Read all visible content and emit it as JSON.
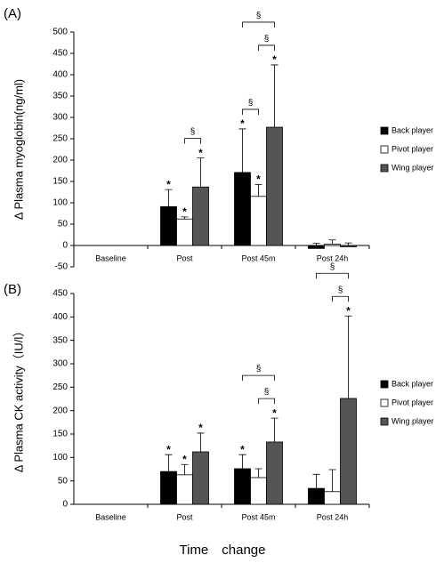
{
  "chart_data": [
    {
      "type": "bar",
      "panel_label": "(A)",
      "y_label": "Δ Plasma myoglobin(ng/ml)",
      "categories": [
        "Baseline",
        "Post",
        "Post 45m",
        "Post 24h"
      ],
      "series": [
        {
          "name": "Back player",
          "color": "#000000",
          "values": [
            0,
            91,
            171,
            -7
          ],
          "errors": [
            0,
            40,
            102,
            5
          ],
          "significance": [
            null,
            "*",
            "*",
            null
          ]
        },
        {
          "name": "Pivot player",
          "color": "#ffffff",
          "values": [
            0,
            62,
            115,
            3
          ],
          "errors": [
            0,
            5,
            28,
            10
          ],
          "significance": [
            null,
            "*",
            "*",
            null
          ]
        },
        {
          "name": "Wing player",
          "color": "#555555",
          "values": [
            0,
            137,
            277,
            -3
          ],
          "errors": [
            0,
            68,
            146,
            6
          ],
          "significance": [
            null,
            "*",
            "*",
            null
          ]
        }
      ],
      "brackets": [
        {
          "category": "Post",
          "from": "Pivot player",
          "to": "Wing player",
          "label": "§"
        },
        {
          "category": "Post 45m",
          "from": "Back player",
          "to": "Pivot player",
          "label": "§"
        },
        {
          "category": "Post 45m",
          "from": "Pivot player",
          "to": "Wing player",
          "label": "§"
        },
        {
          "category": "Post 45m",
          "from": "Back player",
          "to": "Wing player",
          "label": "§"
        }
      ],
      "ylim": [
        -50,
        500
      ],
      "yticks": [
        -50,
        0,
        50,
        100,
        150,
        200,
        250,
        300,
        350,
        400,
        450,
        500
      ]
    },
    {
      "type": "bar",
      "panel_label": "(B)",
      "y_label": "Δ Plasma CK activity（IU/l）",
      "categories": [
        "Baseline",
        "Post",
        "Post 45m",
        "Post 24h"
      ],
      "series": [
        {
          "name": "Back player",
          "color": "#000000",
          "values": [
            0,
            70,
            76,
            34
          ],
          "errors": [
            0,
            36,
            30,
            30
          ],
          "significance": [
            null,
            "*",
            "*",
            null
          ]
        },
        {
          "name": "Pivot player",
          "color": "#ffffff",
          "values": [
            0,
            63,
            57,
            27
          ],
          "errors": [
            0,
            22,
            19,
            47
          ],
          "significance": [
            null,
            "*",
            null,
            null
          ]
        },
        {
          "name": "Wing player",
          "color": "#555555",
          "values": [
            0,
            112,
            133,
            226
          ],
          "errors": [
            0,
            40,
            51,
            176
          ],
          "significance": [
            null,
            "*",
            "*",
            "*"
          ]
        }
      ],
      "brackets": [
        {
          "category": "Post 45m",
          "from": "Pivot player",
          "to": "Wing player",
          "label": "§"
        },
        {
          "category": "Post 45m",
          "from": "Back player",
          "to": "Wing player",
          "label": "§"
        },
        {
          "category": "Post 24h",
          "from": "Pivot player",
          "to": "Wing player",
          "label": "§"
        },
        {
          "category": "Post 24h",
          "from": "Back player",
          "to": "Wing player",
          "label": "§"
        }
      ],
      "ylim": [
        0,
        450
      ],
      "yticks": [
        0,
        50,
        100,
        150,
        200,
        250,
        300,
        350,
        400,
        450
      ]
    }
  ],
  "x_label": "Time　change"
}
